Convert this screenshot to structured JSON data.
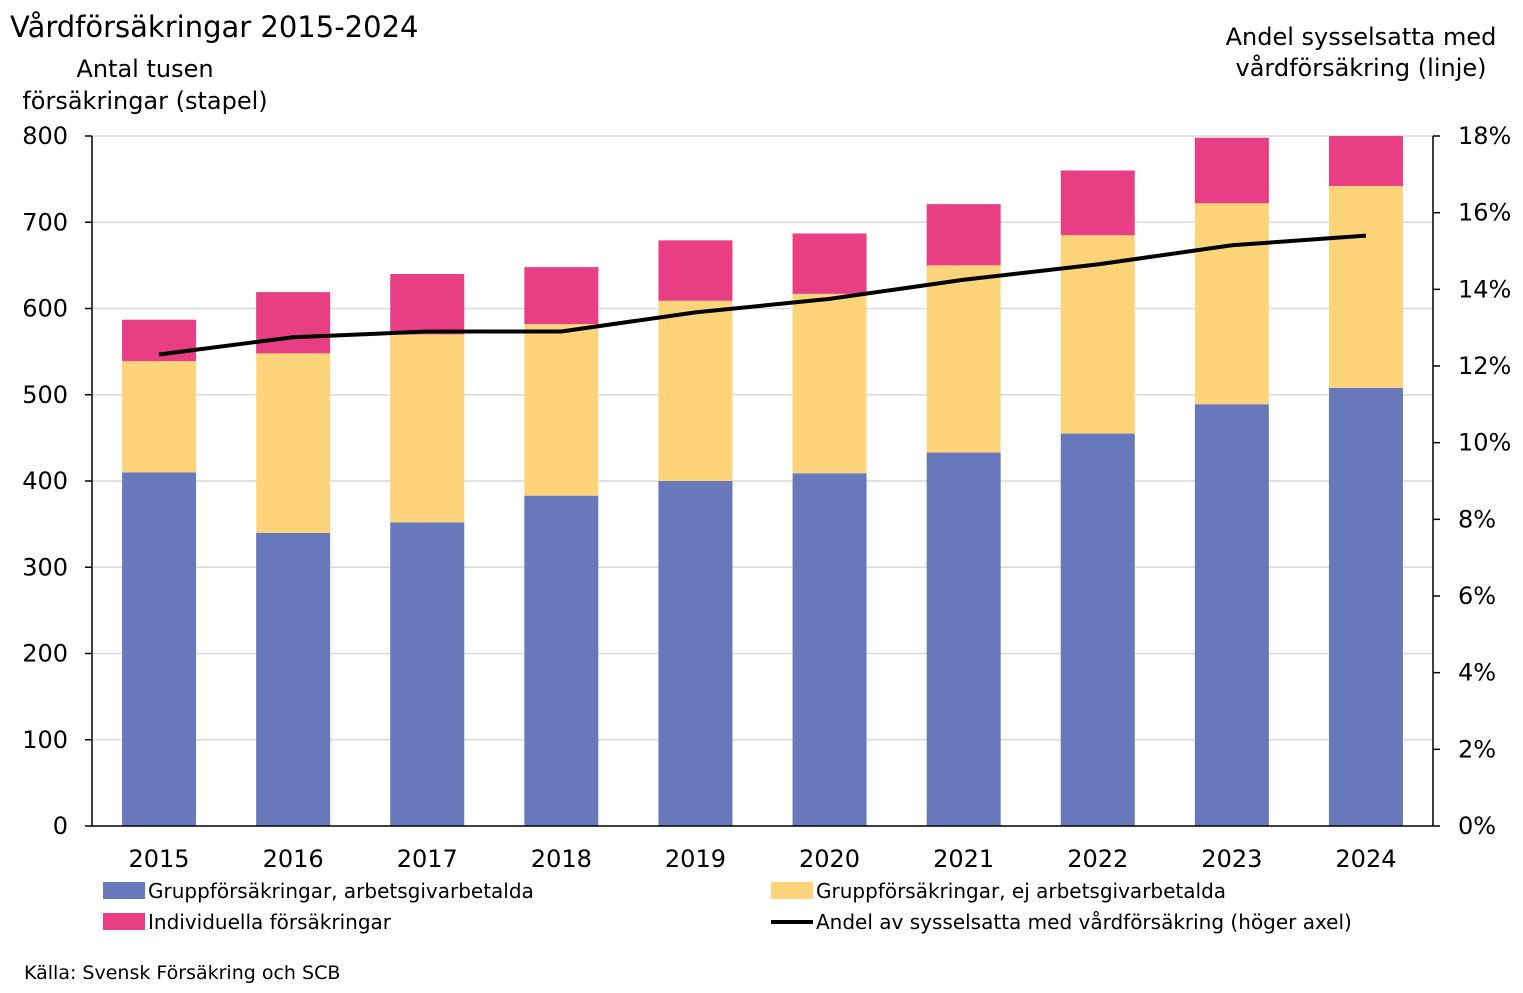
{
  "chart_data": {
    "type": "bar",
    "stacked": true,
    "title": "Vårdförsäkringar 2015-2024",
    "ylabel": [
      "Antal tusen",
      "försäkringar (stapel)"
    ],
    "y2label": [
      "Andel sysselsatta med",
      "vårdförsäkring (linje)"
    ],
    "ylim": [
      0,
      800
    ],
    "y2lim": [
      0,
      18
    ],
    "y_ticks": [
      "0",
      "100",
      "200",
      "300",
      "400",
      "500",
      "600",
      "700",
      "800"
    ],
    "y2_ticks": [
      "0%",
      "2%",
      "4%",
      "6%",
      "8%",
      "10%",
      "12%",
      "14%",
      "16%",
      "18%"
    ],
    "grid": true,
    "legend_position": "bottom",
    "categories": [
      "2015",
      "2016",
      "2017",
      "2018",
      "2019",
      "2020",
      "2021",
      "2022",
      "2023",
      "2024"
    ],
    "series": [
      {
        "name": "Gruppförsäkringar, arbetsgivarbetalda",
        "type": "bar",
        "color": "#6779BB",
        "values": [
          410,
          340,
          352,
          383,
          400,
          409,
          433,
          455,
          489,
          508
        ]
      },
      {
        "name": "Gruppförsäkringar, ej arbetsgivarbetalda",
        "type": "bar",
        "color": "#FED47B",
        "values": [
          129,
          208,
          218,
          199,
          209,
          208,
          217,
          230,
          233,
          234
        ]
      },
      {
        "name": "Individuella försäkringar",
        "type": "bar",
        "color": "#E83E84",
        "values": [
          48,
          71,
          70,
          66,
          70,
          70,
          71,
          75,
          76,
          58
        ]
      },
      {
        "name": "Andel av sysselsatta med vårdförsäkring (höger axel)",
        "type": "line",
        "axis": "right",
        "color": "#000000",
        "values": [
          12.3,
          12.75,
          12.9,
          12.9,
          13.4,
          13.75,
          14.25,
          14.65,
          15.15,
          15.4
        ]
      }
    ]
  },
  "source": "Källa: Svensk Försäkring och SCB"
}
